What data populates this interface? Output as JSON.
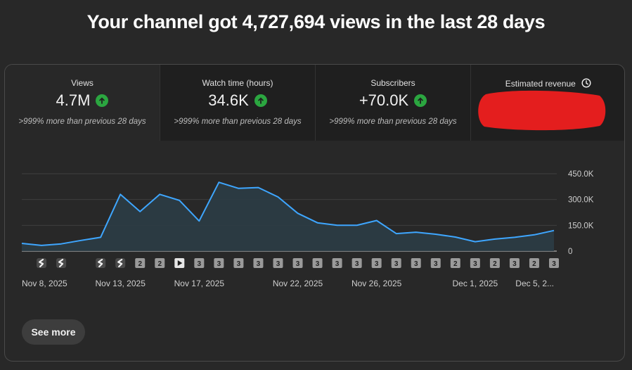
{
  "headline": "Your channel got 4,727,694 views in the last 28 days",
  "tabs": [
    {
      "label": "Views",
      "value": "4.7M",
      "sub": ">999% more than previous 28 days"
    },
    {
      "label": "Watch time (hours)",
      "value": "34.6K",
      "sub": ">999% more than previous 28 days"
    },
    {
      "label": "Subscribers",
      "value": "+70.0K",
      "sub": ">999% more than previous 28 days"
    },
    {
      "label": "Estimated revenue"
    }
  ],
  "colors": {
    "accent": "#3ea6ff",
    "up": "#2ba640",
    "redaction": "#e41e1e"
  },
  "chart_data": {
    "type": "area",
    "values": [
      45000,
      33000,
      42000,
      62000,
      80000,
      330000,
      230000,
      330000,
      295000,
      175000,
      400000,
      365000,
      370000,
      315000,
      220000,
      165000,
      150000,
      150000,
      178000,
      102000,
      110000,
      98000,
      82000,
      55000,
      70000,
      80000,
      95000,
      120000
    ],
    "ylim": [
      0,
      450000
    ],
    "y_ticks": [
      "450.0K",
      "300.0K",
      "150.0K",
      "0"
    ],
    "x_labels": [
      {
        "day": 0,
        "text": "Nov 8, 2025"
      },
      {
        "day": 5,
        "text": "Nov 13, 2025"
      },
      {
        "day": 9,
        "text": "Nov 17, 2025"
      },
      {
        "day": 14,
        "text": "Nov 22, 2025"
      },
      {
        "day": 18,
        "text": "Nov 26, 2025"
      },
      {
        "day": 23,
        "text": "Dec 1, 2025"
      },
      {
        "day": 27,
        "text": "Dec 5, 2..."
      }
    ],
    "markers": [
      {
        "day": 1,
        "type": "shorts"
      },
      {
        "day": 2,
        "type": "shorts"
      },
      {
        "day": 4,
        "type": "shorts"
      },
      {
        "day": 5,
        "type": "shorts"
      },
      {
        "day": 6,
        "type": "count",
        "text": "2"
      },
      {
        "day": 7,
        "type": "count",
        "text": "2"
      },
      {
        "day": 8,
        "type": "video"
      },
      {
        "day": 9,
        "type": "count",
        "text": "3"
      },
      {
        "day": 10,
        "type": "count",
        "text": "3"
      },
      {
        "day": 11,
        "type": "count",
        "text": "3"
      },
      {
        "day": 12,
        "type": "count",
        "text": "3"
      },
      {
        "day": 13,
        "type": "count",
        "text": "3"
      },
      {
        "day": 14,
        "type": "count",
        "text": "3"
      },
      {
        "day": 15,
        "type": "count",
        "text": "3"
      },
      {
        "day": 16,
        "type": "count",
        "text": "3"
      },
      {
        "day": 17,
        "type": "count",
        "text": "3"
      },
      {
        "day": 18,
        "type": "count",
        "text": "3"
      },
      {
        "day": 19,
        "type": "count",
        "text": "3"
      },
      {
        "day": 20,
        "type": "count",
        "text": "3"
      },
      {
        "day": 21,
        "type": "count",
        "text": "3"
      },
      {
        "day": 22,
        "type": "count",
        "text": "2"
      },
      {
        "day": 23,
        "type": "count",
        "text": "3"
      },
      {
        "day": 24,
        "type": "count",
        "text": "2"
      },
      {
        "day": 25,
        "type": "count",
        "text": "3"
      },
      {
        "day": 26,
        "type": "count",
        "text": "2"
      },
      {
        "day": 27,
        "type": "count",
        "text": "3"
      }
    ]
  },
  "see_more_label": "See more"
}
